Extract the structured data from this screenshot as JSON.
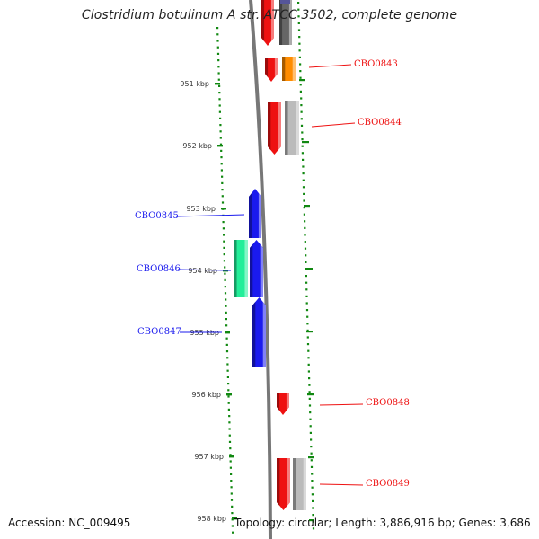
{
  "title": "Clostridium botulinum A str. ATCC 3502, complete genome",
  "ticks": [
    "951 kbp",
    "952 kbp",
    "953 kbp",
    "954 kbp",
    "955 kbp",
    "956 kbp",
    "957 kbp",
    "958 kbp"
  ],
  "genes": [
    {
      "label": "CBO0843",
      "color": "#ee1111",
      "strand": "reverse"
    },
    {
      "label": "CBO0844",
      "color": "#ee1111",
      "strand": "reverse"
    },
    {
      "label": "CBO0845",
      "color": "#1a1aee",
      "strand": "forward"
    },
    {
      "label": "CBO0846",
      "color": "#1a1aee",
      "strand": "forward"
    },
    {
      "label": "CBO0847",
      "color": "#1a1aee",
      "strand": "forward"
    },
    {
      "label": "CBO0848",
      "color": "#ee1111",
      "strand": "reverse"
    },
    {
      "label": "CBO0849",
      "color": "#ee1111",
      "strand": "reverse"
    }
  ],
  "colors": {
    "reverse_strand": "#ee1111",
    "forward_strand": "#1a1aee",
    "cog_orange": "#ff8c00",
    "cog_grey": "#bbbbbb",
    "cog_dark_grey": "#666666",
    "cog_green": "#22ee99",
    "backbone": "#777777",
    "gc_ticks": "#118811"
  },
  "footer": {
    "accession": "Accession: NC_009495",
    "stats": "Topology: circular; Length: 3,886,916 bp; Genes: 3,686"
  }
}
